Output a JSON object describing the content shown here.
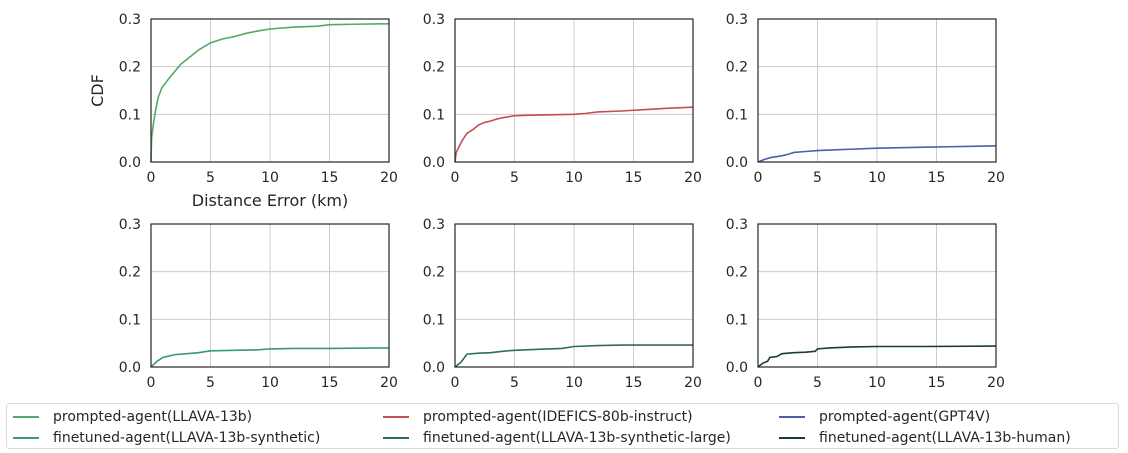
{
  "chart_data": [
    {
      "type": "line",
      "series_name": "prompted-agent(LLAVA-13b)",
      "color": "#55a868",
      "xlabel": "Distance Error (km)",
      "ylabel": "CDF",
      "xlim": [
        0,
        20
      ],
      "ylim": [
        0,
        0.3
      ],
      "xticks": [
        "0",
        "5",
        "10",
        "15",
        "20"
      ],
      "yticks": [
        "0.0",
        "0.1",
        "0.2",
        "0.3"
      ],
      "grid": true,
      "x": [
        0,
        0.05,
        0.2,
        0.4,
        0.6,
        0.9,
        1.2,
        1.5,
        2,
        2.5,
        3,
        3.5,
        4,
        5,
        6,
        7,
        8,
        9,
        10,
        12,
        14,
        15,
        17,
        20
      ],
      "y": [
        0,
        0.05,
        0.08,
        0.11,
        0.135,
        0.155,
        0.165,
        0.175,
        0.19,
        0.205,
        0.215,
        0.225,
        0.235,
        0.25,
        0.258,
        0.263,
        0.27,
        0.275,
        0.279,
        0.283,
        0.285,
        0.288,
        0.289,
        0.29
      ]
    },
    {
      "type": "line",
      "series_name": "prompted-agent(IDEFICS-80b-instruct)",
      "color": "#c44e52",
      "xlabel": "",
      "ylabel": "",
      "xlim": [
        0,
        20
      ],
      "ylim": [
        0,
        0.3
      ],
      "xticks": [
        "0",
        "5",
        "10",
        "15",
        "20"
      ],
      "yticks": [
        "0.0",
        "0.1",
        "0.2",
        "0.3"
      ],
      "grid": true,
      "x": [
        0,
        0.1,
        0.3,
        0.6,
        1,
        1.5,
        2,
        2.5,
        3,
        3.5,
        4,
        5,
        6,
        8,
        10,
        11,
        12,
        14,
        16,
        18,
        20
      ],
      "y": [
        0,
        0.02,
        0.03,
        0.045,
        0.06,
        0.068,
        0.078,
        0.083,
        0.086,
        0.09,
        0.093,
        0.097,
        0.098,
        0.099,
        0.1,
        0.102,
        0.105,
        0.107,
        0.11,
        0.113,
        0.115
      ]
    },
    {
      "type": "line",
      "series_name": "prompted-agent(GPT4V)",
      "color": "#4c5fa8",
      "xlabel": "",
      "ylabel": "",
      "xlim": [
        0,
        20
      ],
      "ylim": [
        0,
        0.3
      ],
      "xticks": [
        "0",
        "5",
        "10",
        "15",
        "20"
      ],
      "yticks": [
        "0.0",
        "0.1",
        "0.2",
        "0.3"
      ],
      "grid": true,
      "x": [
        0,
        0.5,
        1,
        2,
        2.5,
        3,
        4,
        5,
        6,
        8,
        10,
        12,
        14,
        16,
        18,
        20
      ],
      "y": [
        0,
        0.005,
        0.009,
        0.013,
        0.016,
        0.02,
        0.022,
        0.024,
        0.025,
        0.027,
        0.029,
        0.03,
        0.031,
        0.032,
        0.033,
        0.034
      ]
    },
    {
      "type": "line",
      "series_name": "finetuned-agent(LLAVA-13b-synthetic)",
      "color": "#3a9a6c",
      "xlabel": "",
      "ylabel": "",
      "xlim": [
        0,
        20
      ],
      "ylim": [
        0,
        0.3
      ],
      "xticks": [
        "0",
        "5",
        "10",
        "15",
        "20"
      ],
      "yticks": [
        "0.0",
        "0.1",
        "0.2",
        "0.3"
      ],
      "grid": true,
      "x": [
        0,
        0.5,
        1,
        1.5,
        2,
        3,
        4,
        5,
        7,
        9,
        10,
        12,
        15,
        20
      ],
      "y": [
        0,
        0.012,
        0.02,
        0.023,
        0.026,
        0.028,
        0.03,
        0.034,
        0.035,
        0.036,
        0.038,
        0.039,
        0.039,
        0.04
      ]
    },
    {
      "type": "line",
      "series_name": "finetuned-agent(LLAVA-13b-synthetic-large)",
      "color": "#2e6f52",
      "xlabel": "",
      "ylabel": "",
      "xlim": [
        0,
        20
      ],
      "ylim": [
        0,
        0.3
      ],
      "xticks": [
        "0",
        "5",
        "10",
        "15",
        "20"
      ],
      "yticks": [
        "0.0",
        "0.1",
        "0.2",
        "0.3"
      ],
      "grid": true,
      "x": [
        0,
        0.5,
        0.8,
        1,
        2,
        3,
        4,
        5,
        7,
        9,
        10,
        12,
        14,
        16,
        20
      ],
      "y": [
        0,
        0.01,
        0.02,
        0.027,
        0.029,
        0.03,
        0.033,
        0.035,
        0.037,
        0.039,
        0.043,
        0.045,
        0.046,
        0.046,
        0.046
      ]
    },
    {
      "type": "line",
      "series_name": "finetuned-agent(LLAVA-13b-human)",
      "color": "#173f2c",
      "xlabel": "",
      "ylabel": "",
      "xlim": [
        0,
        20
      ],
      "ylim": [
        0,
        0.3
      ],
      "xticks": [
        "0",
        "5",
        "10",
        "15",
        "20"
      ],
      "yticks": [
        "0.0",
        "0.1",
        "0.2",
        "0.3"
      ],
      "grid": true,
      "x": [
        0,
        0.4,
        0.8,
        1,
        1.6,
        2,
        3,
        4,
        4.8,
        5,
        6,
        8,
        10,
        14,
        20
      ],
      "y": [
        0,
        0.008,
        0.012,
        0.02,
        0.022,
        0.028,
        0.03,
        0.031,
        0.033,
        0.038,
        0.04,
        0.042,
        0.043,
        0.043,
        0.044
      ]
    }
  ],
  "legend": {
    "items": [
      {
        "label": "prompted-agent(LLAVA-13b)",
        "color": "#55a868"
      },
      {
        "label": "prompted-agent(IDEFICS-80b-instruct)",
        "color": "#c44e52"
      },
      {
        "label": "prompted-agent(GPT4V)",
        "color": "#4c5fa8"
      },
      {
        "label": "finetuned-agent(LLAVA-13b-synthetic)",
        "color": "#3a9a6c"
      },
      {
        "label": "finetuned-agent(LLAVA-13b-synthetic-large)",
        "color": "#2e6f52"
      },
      {
        "label": "finetuned-agent(LLAVA-13b-human)",
        "color": "#173f2c"
      }
    ]
  }
}
